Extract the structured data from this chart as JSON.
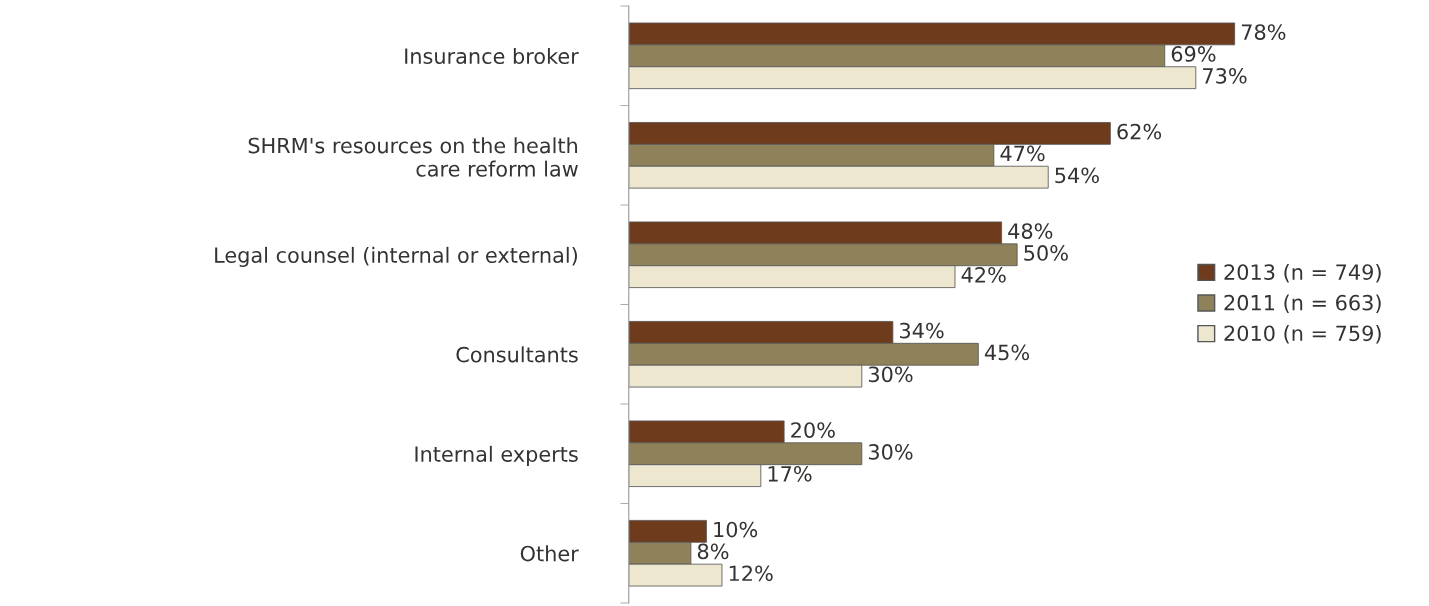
{
  "chart_data": {
    "type": "bar",
    "orientation": "horizontal",
    "categories": [
      "Insurance broker",
      "SHRM's resources on the health\ncare reform law",
      "Legal counsel (internal or external)",
      "Consultants",
      "Internal experts",
      "Other"
    ],
    "series": [
      {
        "name": "2013 (n = 749)",
        "color": "#6e3b1c",
        "values": [
          78,
          62,
          48,
          34,
          20,
          10
        ],
        "value_labels": [
          "78%",
          "62%",
          "48%",
          "34%",
          "20%",
          "10%"
        ]
      },
      {
        "name": "2011 (n = 663)",
        "color": "#8f8159",
        "values": [
          69,
          47,
          50,
          45,
          30,
          8
        ],
        "value_labels": [
          "69%",
          "47%",
          "50%",
          "45%",
          "30%",
          "8%"
        ]
      },
      {
        "name": "2010 (n = 759)",
        "color": "#ede7d0",
        "values": [
          73,
          54,
          42,
          30,
          17,
          12
        ],
        "value_labels": [
          "73%",
          "54%",
          "42%",
          "30%",
          "17%",
          "12%"
        ]
      }
    ],
    "legend": "right",
    "grid": false
  }
}
